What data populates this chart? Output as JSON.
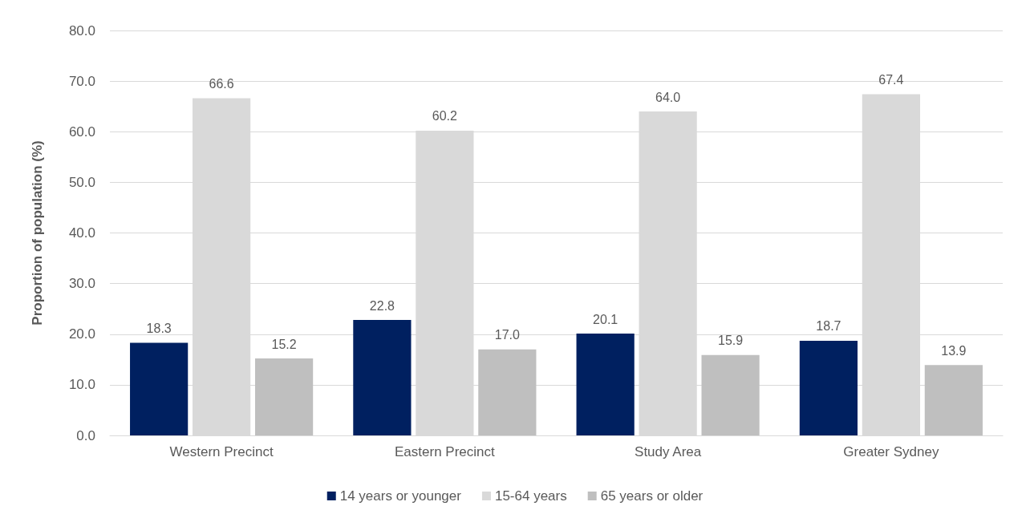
{
  "chart_data": {
    "type": "bar",
    "ylabel": "Proportion of population (%)",
    "categories": [
      "Western Precinct",
      "Eastern Precinct",
      "Study Area",
      "Greater Sydney"
    ],
    "series": [
      {
        "name": "14 years or younger",
        "color": "#002060",
        "values": [
          18.3,
          22.8,
          20.1,
          18.7
        ],
        "value_labels": [
          "18.3",
          "22.8",
          "20.1",
          "18.7"
        ]
      },
      {
        "name": "15-64 years",
        "color": "#d9d9d9",
        "values": [
          66.6,
          60.2,
          64.0,
          67.4
        ],
        "value_labels": [
          "66.6",
          "60.2",
          "64.0",
          "67.4"
        ]
      },
      {
        "name": "65 years or older",
        "color": "#bfbfbf",
        "values": [
          15.2,
          17.0,
          15.9,
          13.9
        ],
        "value_labels": [
          "15.2",
          "17.0",
          "15.9",
          "13.9"
        ]
      }
    ],
    "ylim": [
      0,
      80
    ],
    "yticks": [
      {
        "value": 0,
        "label": "0.0"
      },
      {
        "value": 10,
        "label": "10.0"
      },
      {
        "value": 20,
        "label": "20.0"
      },
      {
        "value": 30,
        "label": "30.0"
      },
      {
        "value": 40,
        "label": "40.0"
      },
      {
        "value": 50,
        "label": "50.0"
      },
      {
        "value": 60,
        "label": "60.0"
      },
      {
        "value": 70,
        "label": "70.0"
      },
      {
        "value": 80,
        "label": "80.0"
      }
    ],
    "grid": "y",
    "legend": "bottom"
  }
}
